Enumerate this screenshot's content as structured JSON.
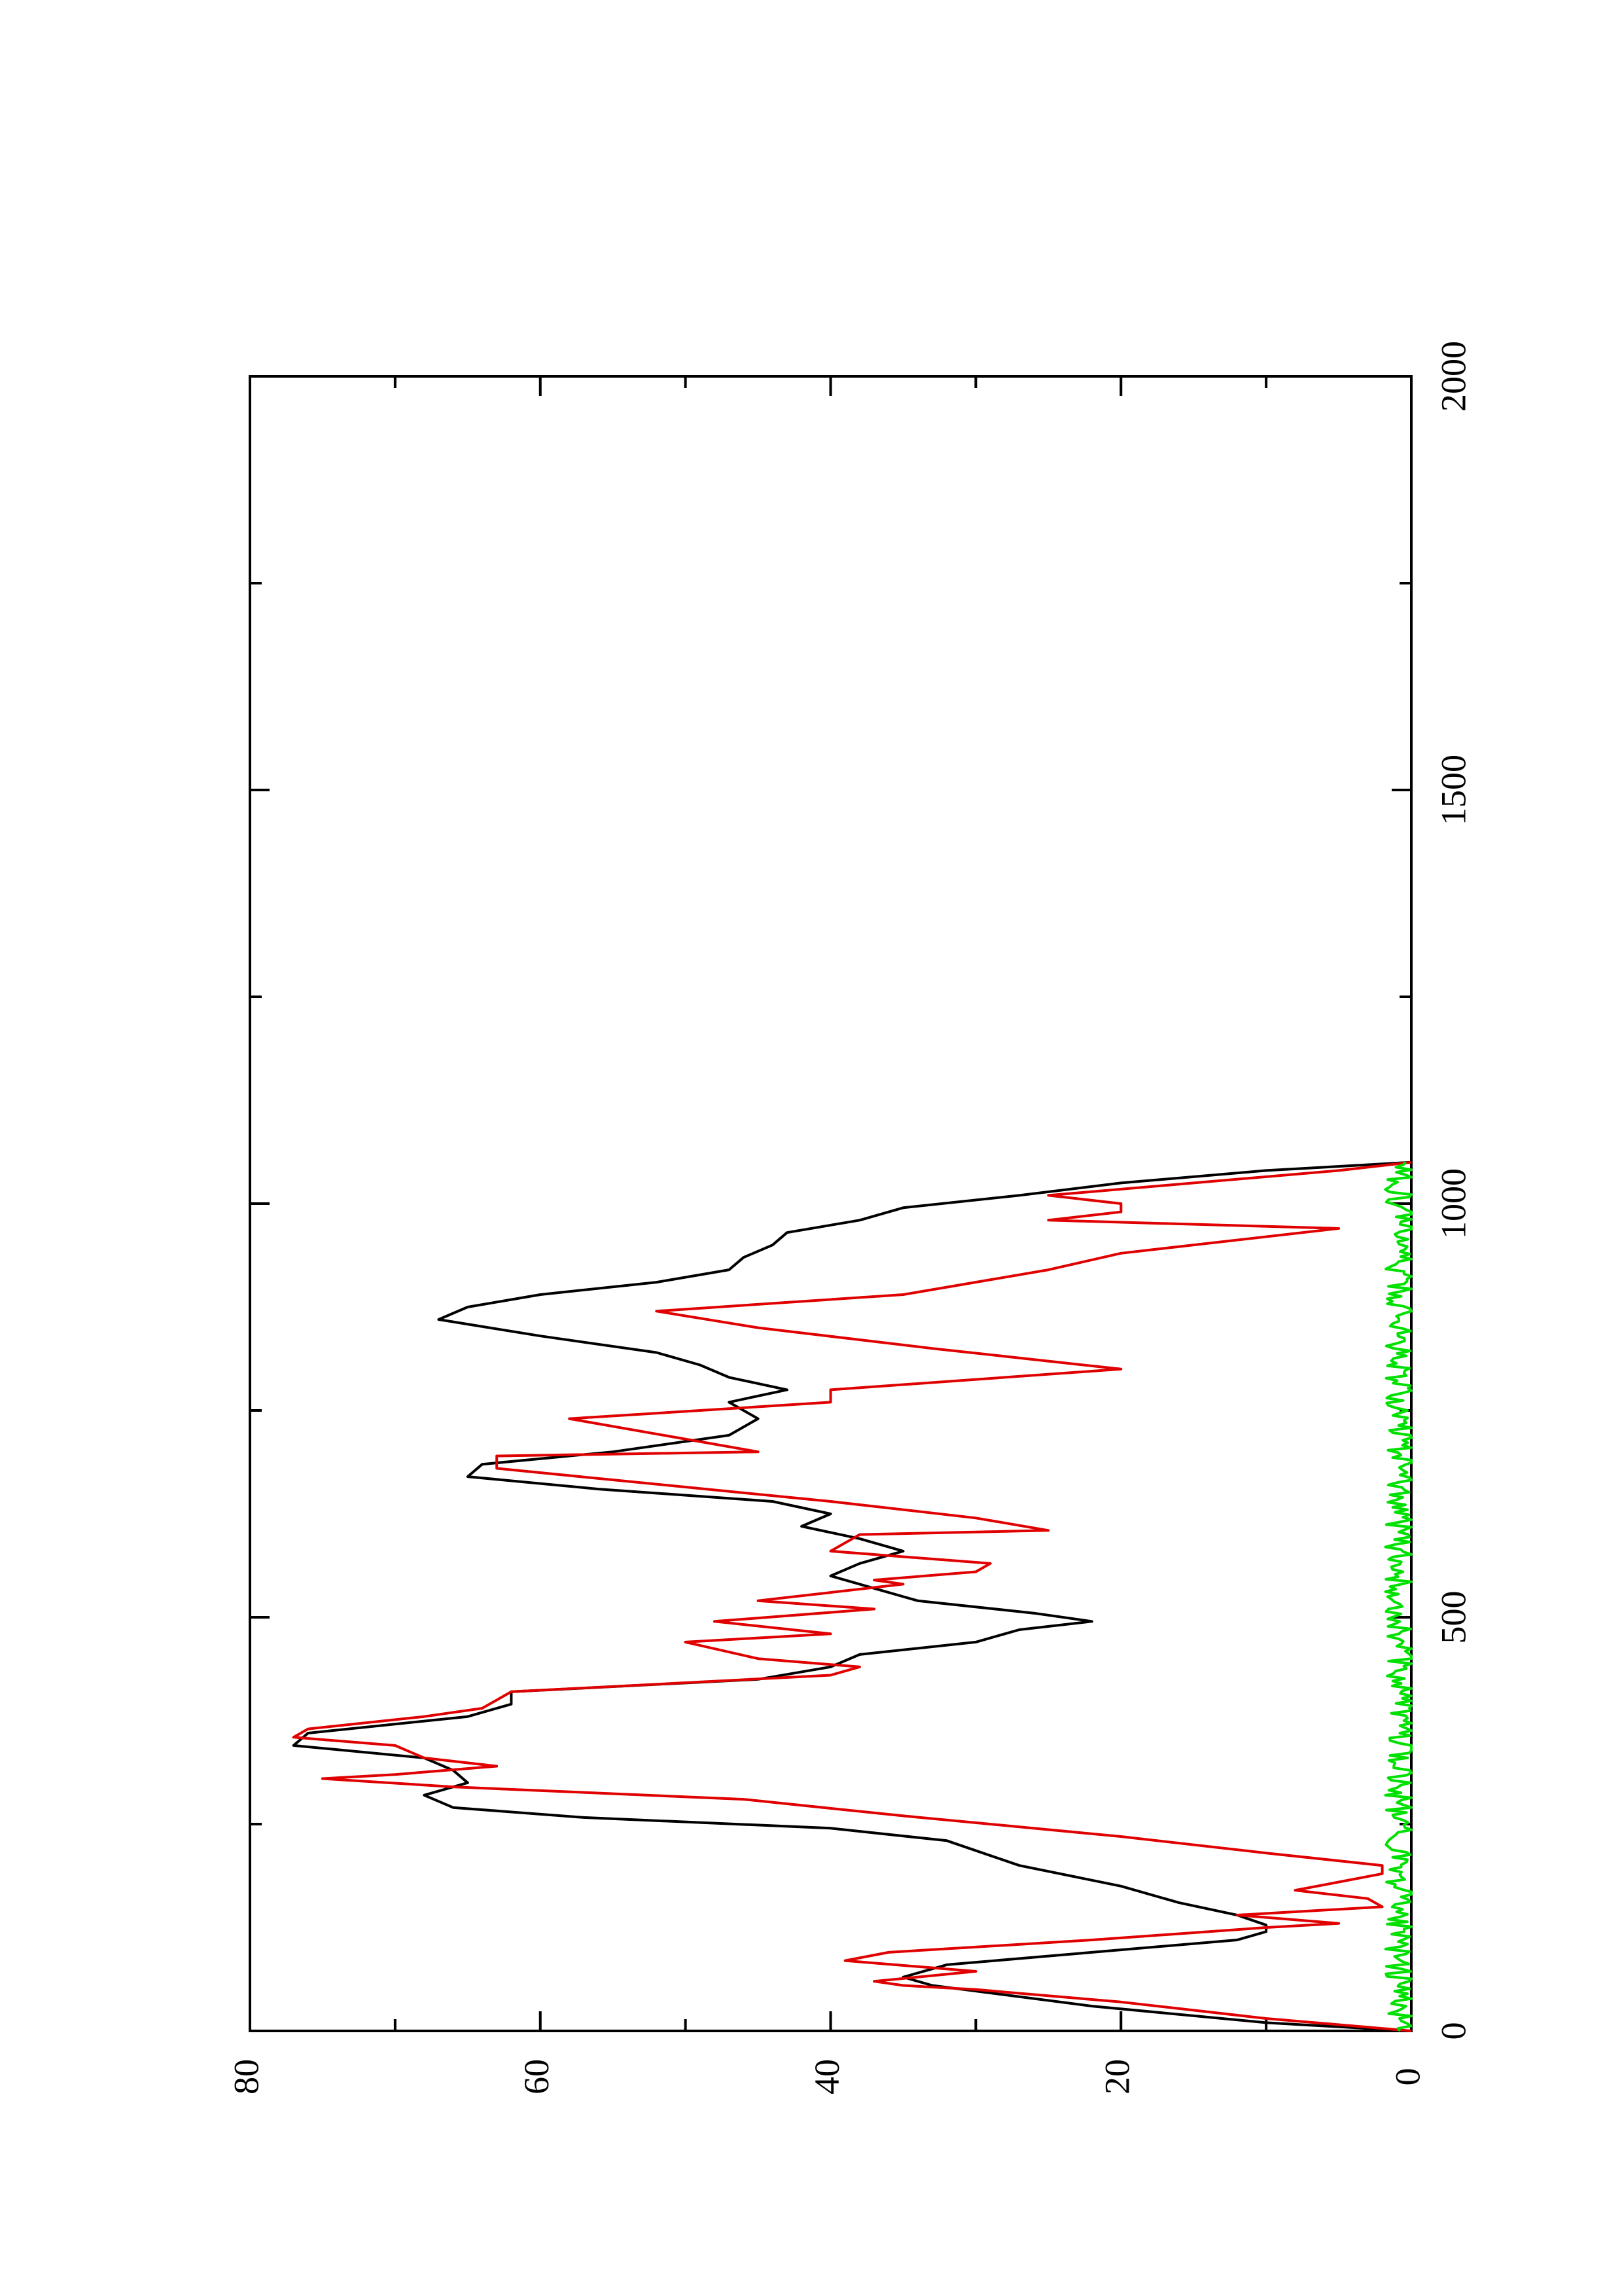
{
  "chart_data": {
    "type": "line",
    "orientation": "rotated 90 degrees clockwise (page in landscape printed on portrait sheet)",
    "xlim": [
      0,
      2000
    ],
    "ylim": [
      0,
      80
    ],
    "x_ticks": [
      0,
      500,
      1000,
      1500,
      2000
    ],
    "x_tick_labels": [
      "0",
      "500",
      "1000",
      "1500",
      "2000"
    ],
    "y_ticks": [
      0,
      20,
      40,
      60,
      80
    ],
    "y_tick_labels": [
      "0",
      "20",
      "40",
      "60",
      "80"
    ],
    "x_minor_ticks": [
      250,
      750,
      1250,
      1750
    ],
    "y_minor_ticks": [
      10,
      30,
      50,
      70
    ],
    "grid": false,
    "series": [
      {
        "color": "#000000",
        "x": [
          0,
          10,
          30,
          55,
          65,
          80,
          95,
          110,
          120,
          128,
          140,
          155,
          175,
          200,
          230,
          245,
          258,
          270,
          285,
          300,
          315,
          330,
          345,
          360,
          380,
          395,
          410,
          425,
          440,
          455,
          470,
          485,
          495,
          505,
          520,
          535,
          550,
          565,
          580,
          595,
          610,
          625,
          640,
          655,
          670,
          685,
          700,
          720,
          740,
          760,
          775,
          790,
          805,
          820,
          840,
          860,
          875,
          890,
          905,
          920,
          935,
          950,
          965,
          980,
          995,
          1010,
          1025,
          1040,
          1050
        ],
        "y": [
          0,
          10,
          22,
          33,
          35,
          32,
          22,
          12,
          10,
          10,
          12,
          16,
          20,
          27,
          32,
          40,
          57,
          66,
          68,
          65,
          66,
          68,
          77,
          76,
          65,
          62,
          62,
          45,
          40,
          38,
          30,
          27,
          22,
          26,
          34,
          37,
          40,
          38,
          35,
          38,
          42,
          40,
          44,
          56,
          65,
          64,
          55,
          47,
          45,
          47,
          43,
          47,
          49,
          52,
          60,
          67,
          65,
          60,
          52,
          47,
          46,
          44,
          43,
          38,
          35,
          27,
          20,
          10,
          0
        ]
      },
      {
        "color": "#e00000",
        "x": [
          0,
          15,
          35,
          50,
          55,
          60,
          72,
          85,
          95,
          110,
          125,
          130,
          140,
          150,
          160,
          170,
          180,
          190,
          200,
          215,
          235,
          260,
          280,
          295,
          305,
          310,
          320,
          330,
          345,
          355,
          365,
          380,
          390,
          410,
          430,
          440,
          450,
          470,
          480,
          495,
          510,
          520,
          530,
          540,
          545,
          555,
          565,
          580,
          600,
          605,
          620,
          640,
          680,
          695,
          700,
          740,
          760,
          775,
          800,
          825,
          850,
          870,
          890,
          920,
          940,
          970,
          980,
          990,
          1000,
          1010,
          1025,
          1040,
          1050
        ],
        "y": [
          0,
          10,
          20,
          30,
          35,
          37,
          30,
          39,
          36,
          22,
          10,
          5,
          12,
          2,
          3,
          8,
          5,
          2,
          2,
          10,
          20,
          35,
          46,
          66,
          75,
          70,
          63,
          68,
          70,
          77,
          76,
          68,
          64,
          62,
          40,
          38,
          45,
          50,
          40,
          48,
          37,
          45,
          40,
          35,
          37,
          30,
          29,
          40,
          38,
          25,
          30,
          40,
          63,
          63,
          45,
          58,
          40,
          40,
          20,
          33,
          45,
          52,
          35,
          25,
          20,
          5,
          25,
          20,
          20,
          25,
          15,
          5,
          0
        ]
      },
      {
        "color": "#00e000",
        "x_start": 0,
        "x_end": 1050,
        "baseline": 0.8,
        "amplitude": 1.0,
        "note": "noisy series fluctuating near zero"
      }
    ]
  }
}
